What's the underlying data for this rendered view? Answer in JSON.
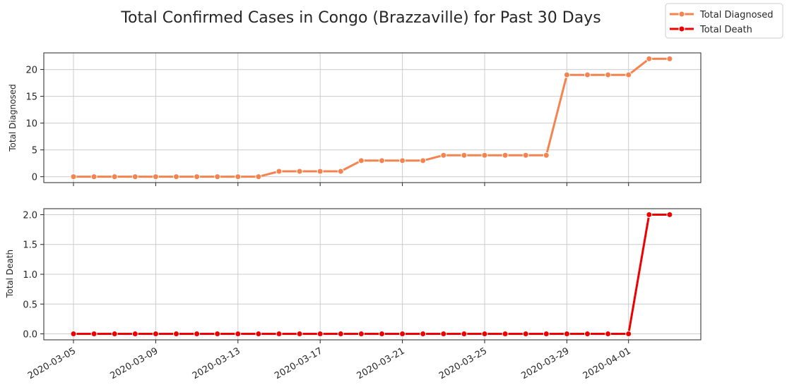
{
  "figure": {
    "title": "Total Confirmed Cases in Congo (Brazzaville) for Past 30 Days",
    "legend": {
      "placement": "top-right",
      "entries": [
        "Total Diagnosed",
        "Total Death"
      ]
    }
  },
  "colors": {
    "diagnosed": "#f5834f",
    "death": "#ee0000",
    "grid": "#cccccc",
    "axis": "#262626"
  },
  "chart_data": [
    {
      "type": "line",
      "ylabel": "Total Diagnosed",
      "series_name": "Total Diagnosed",
      "x": [
        "2020-03-05",
        "2020-03-06",
        "2020-03-07",
        "2020-03-08",
        "2020-03-09",
        "2020-03-10",
        "2020-03-11",
        "2020-03-12",
        "2020-03-13",
        "2020-03-14",
        "2020-03-15",
        "2020-03-16",
        "2020-03-17",
        "2020-03-18",
        "2020-03-19",
        "2020-03-20",
        "2020-03-21",
        "2020-03-22",
        "2020-03-23",
        "2020-03-24",
        "2020-03-25",
        "2020-03-26",
        "2020-03-27",
        "2020-03-28",
        "2020-03-29",
        "2020-03-30",
        "2020-03-31",
        "2020-04-01",
        "2020-04-02",
        "2020-04-03"
      ],
      "values": [
        0,
        0,
        0,
        0,
        0,
        0,
        0,
        0,
        0,
        0,
        1,
        1,
        1,
        1,
        3,
        3,
        3,
        3,
        4,
        4,
        4,
        4,
        4,
        4,
        19,
        19,
        19,
        19,
        22,
        22
      ],
      "ylim": [
        -1.1,
        23.1
      ],
      "yticks": [
        0,
        5,
        10,
        15,
        20
      ],
      "ytick_labels": [
        "0",
        "5",
        "10",
        "15",
        "20"
      ],
      "grid": true
    },
    {
      "type": "line",
      "ylabel": "Total Death",
      "series_name": "Total Death",
      "x": [
        "2020-03-05",
        "2020-03-06",
        "2020-03-07",
        "2020-03-08",
        "2020-03-09",
        "2020-03-10",
        "2020-03-11",
        "2020-03-12",
        "2020-03-13",
        "2020-03-14",
        "2020-03-15",
        "2020-03-16",
        "2020-03-17",
        "2020-03-18",
        "2020-03-19",
        "2020-03-20",
        "2020-03-21",
        "2020-03-22",
        "2020-03-23",
        "2020-03-24",
        "2020-03-25",
        "2020-03-26",
        "2020-03-27",
        "2020-03-28",
        "2020-03-29",
        "2020-03-30",
        "2020-03-31",
        "2020-04-01",
        "2020-04-02",
        "2020-04-03"
      ],
      "values": [
        0,
        0,
        0,
        0,
        0,
        0,
        0,
        0,
        0,
        0,
        0,
        0,
        0,
        0,
        0,
        0,
        0,
        0,
        0,
        0,
        0,
        0,
        0,
        0,
        0,
        0,
        0,
        0,
        2,
        2
      ],
      "ylim": [
        -0.1,
        2.1
      ],
      "yticks": [
        0,
        0.5,
        1,
        1.5,
        2
      ],
      "ytick_labels": [
        "0.0",
        "0.5",
        "1.0",
        "1.5",
        "2.0"
      ],
      "grid": true
    }
  ],
  "xaxis": {
    "tick_dates": [
      "2020-03-05",
      "2020-03-09",
      "2020-03-13",
      "2020-03-17",
      "2020-03-21",
      "2020-03-25",
      "2020-03-29",
      "2020-04-01"
    ],
    "tick_labels": [
      "2020-03-05",
      "2020-03-09",
      "2020-03-13",
      "2020-03-17",
      "2020-03-21",
      "2020-03-25",
      "2020-03-29",
      "2020-04-01"
    ]
  }
}
